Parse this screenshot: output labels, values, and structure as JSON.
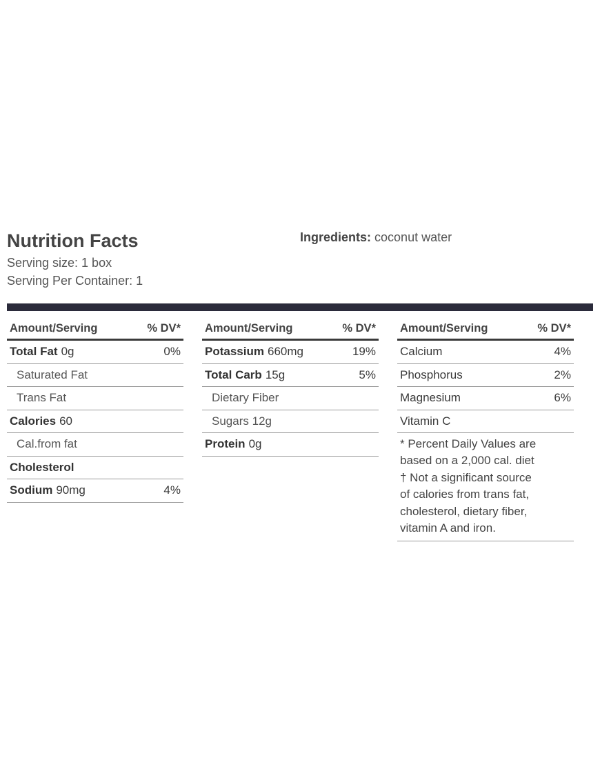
{
  "header": {
    "title": "Nutrition Facts",
    "serving_size": "Serving size: 1 box",
    "servings": "Serving Per Container: 1"
  },
  "ingredients": {
    "label": "Ingredients:",
    "text": "coconut water"
  },
  "columns": [
    {
      "head": [
        "Amount/Serving",
        "% DV*"
      ],
      "rows": [
        {
          "name": "Total Fat",
          "amount": "0g",
          "dv": "0%"
        },
        {
          "name": "Saturated Fat"
        },
        {
          "name": "Trans Fat"
        },
        {
          "name": "Calories",
          "amount": "60"
        },
        {
          "name": "Cal.from fat"
        },
        {
          "name": "Cholesterol"
        },
        {
          "name": "Sodium",
          "amount": "90mg",
          "dv": "4%"
        }
      ]
    },
    {
      "head": [
        "Amount/Serving",
        "% DV*"
      ],
      "rows": [
        {
          "name": "Potassium",
          "amount": "660mg",
          "dv": "19%"
        },
        {
          "name": "Total Carb",
          "amount": "15g",
          "dv": "5%"
        },
        {
          "name": "Dietary Fiber"
        },
        {
          "name": "Sugars",
          "amount": "12g"
        },
        {
          "name": "Protein",
          "amount": "0g"
        }
      ]
    },
    {
      "head": [
        "Amount/Serving",
        "% DV*"
      ],
      "rows": [
        {
          "name": "Calcium",
          "dv": "4%"
        },
        {
          "name": "Phosphorus",
          "dv": "2%"
        },
        {
          "name": "Magnesium",
          "dv": "6%"
        },
        {
          "name": "Vitamin C"
        }
      ],
      "note": [
        "* Percent Daily Values are",
        "based on a 2,000 cal. diet",
        "† Not a significant source",
        "of calories from trans fat,",
        "cholesterol, dietary fiber,",
        "vitamin A and iron."
      ]
    }
  ]
}
